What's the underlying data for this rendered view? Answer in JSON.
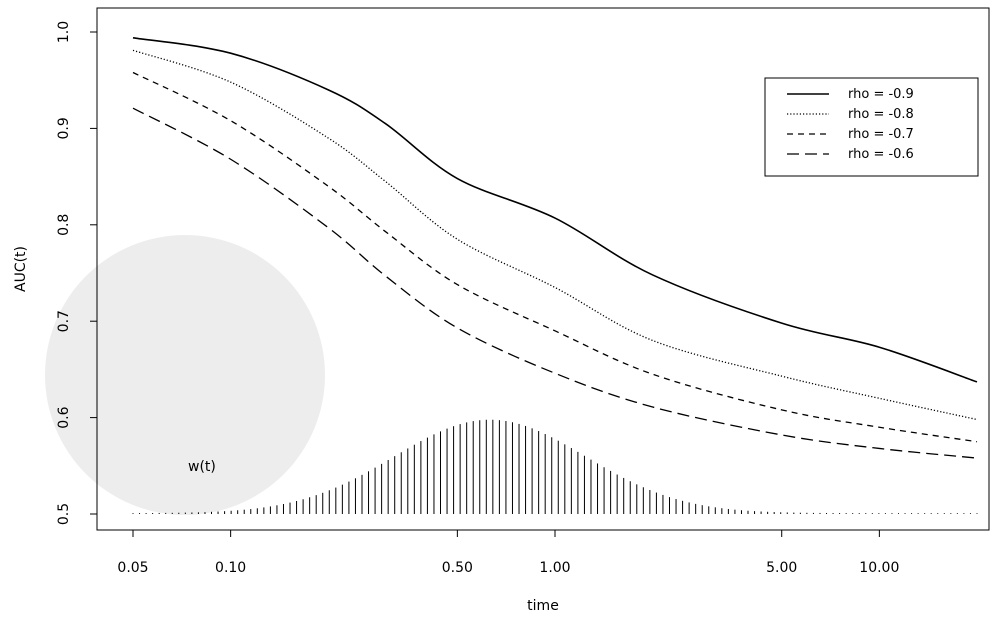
{
  "chart_data": {
    "type": "line",
    "title": "",
    "xlabel": "time",
    "ylabel": "AUC(t)",
    "x_scale": "log",
    "xlim": [
      0.05,
      20
    ],
    "ylim": [
      0.5,
      1.0
    ],
    "x_ticks": [
      0.05,
      0.1,
      0.5,
      1.0,
      5.0,
      10.0
    ],
    "x_tick_labels": [
      "0.05",
      "0.10",
      "0.50",
      "1.00",
      "5.00",
      "10.00"
    ],
    "y_ticks": [
      0.5,
      0.6,
      0.7,
      0.8,
      0.9,
      1.0
    ],
    "y_tick_labels": [
      "0.5",
      "0.6",
      "0.7",
      "0.8",
      "0.9",
      "1.0"
    ],
    "grid": false,
    "legend_position": "top-right",
    "series": [
      {
        "name": "rho = -0.9",
        "dash": "solid",
        "x": [
          0.05,
          0.1,
          0.2,
          0.3,
          0.5,
          1.0,
          2.0,
          5.0,
          10.0,
          20.0
        ],
        "y": [
          0.994,
          0.978,
          0.94,
          0.905,
          0.848,
          0.807,
          0.748,
          0.698,
          0.673,
          0.637
        ]
      },
      {
        "name": "rho = -0.8",
        "dash": "dotted",
        "x": [
          0.05,
          0.1,
          0.2,
          0.3,
          0.5,
          1.0,
          2.0,
          5.0,
          10.0,
          20.0
        ],
        "y": [
          0.981,
          0.948,
          0.89,
          0.845,
          0.785,
          0.735,
          0.68,
          0.643,
          0.62,
          0.598
        ]
      },
      {
        "name": "rho = -0.7",
        "dash": "short-dash",
        "x": [
          0.05,
          0.1,
          0.2,
          0.3,
          0.5,
          1.0,
          2.0,
          5.0,
          10.0,
          20.0
        ],
        "y": [
          0.958,
          0.908,
          0.84,
          0.793,
          0.738,
          0.69,
          0.645,
          0.608,
          0.59,
          0.575
        ]
      },
      {
        "name": "rho = -0.6",
        "dash": "long-dash",
        "x": [
          0.05,
          0.1,
          0.2,
          0.3,
          0.5,
          1.0,
          2.0,
          5.0,
          10.0,
          20.0
        ],
        "y": [
          0.921,
          0.868,
          0.797,
          0.747,
          0.693,
          0.646,
          0.611,
          0.582,
          0.568,
          0.558
        ]
      }
    ],
    "weight": {
      "label": "w(t)",
      "baseline": 0.5,
      "peak": 0.597,
      "mode_time": 0.63,
      "log_sd": 0.68,
      "x_from": 0.05,
      "x_to": 20,
      "count": 130
    }
  }
}
